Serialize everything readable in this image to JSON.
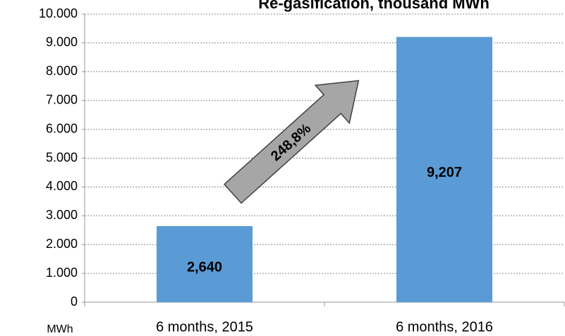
{
  "chart_data": {
    "type": "bar",
    "title": "Re-gasification, thousand MWh",
    "categories": [
      "6 months, 2015",
      "6 months, 2016"
    ],
    "values": [
      2640,
      9207
    ],
    "value_labels": [
      "2,640",
      "9,207"
    ],
    "color": "#5b9bd5",
    "ylim": [
      0,
      10000
    ],
    "yticks": [
      0,
      {
        "value": 1000,
        "label": "1.000"
      },
      {
        "value": 2000,
        "label": "2.000"
      },
      {
        "value": 3000,
        "label": "3.000"
      },
      {
        "value": 4000,
        "label": "4.000"
      },
      {
        "value": 5000,
        "label": "5.000"
      },
      {
        "value": 6000,
        "label": "6.000"
      },
      {
        "value": 7000,
        "label": "7.000"
      },
      {
        "value": 8000,
        "label": "8.000"
      },
      {
        "value": 9000,
        "label": "9.000"
      },
      {
        "value": 10000,
        "label": "10.000"
      }
    ],
    "y_axis_label": "MWh",
    "annotation": "248,8%",
    "grid": true
  }
}
